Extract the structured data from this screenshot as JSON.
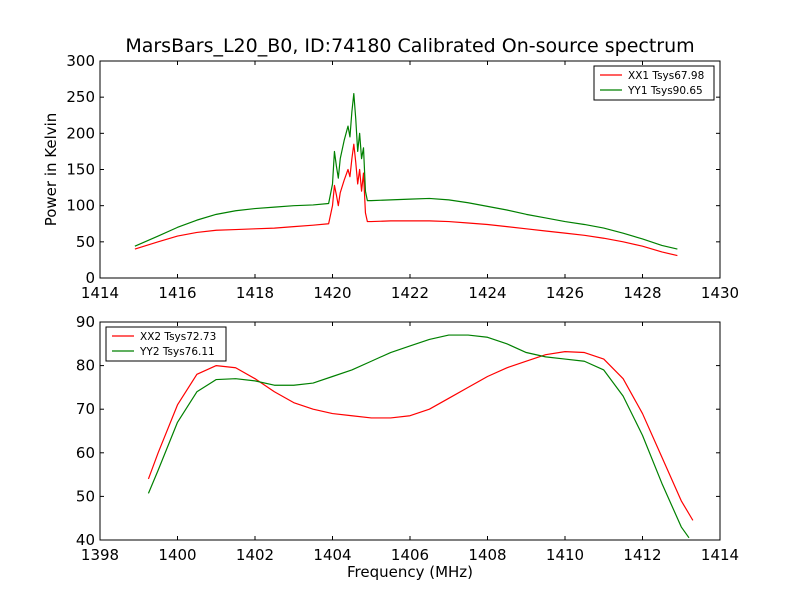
{
  "title": "MarsBars_L20_B0, ID:74180 Calibrated On-source spectrum",
  "chart_data": [
    {
      "type": "line",
      "title": "MarsBars_L20_B0, ID:74180 Calibrated On-source spectrum",
      "xlabel": "",
      "ylabel": "Power in Kelvin",
      "xlim": [
        1414,
        1430
      ],
      "ylim": [
        0,
        300
      ],
      "xticks": [
        1414,
        1416,
        1418,
        1420,
        1422,
        1424,
        1426,
        1428,
        1430
      ],
      "yticks": [
        0,
        50,
        100,
        150,
        200,
        250,
        300
      ],
      "grid": false,
      "legend_position": "top-right",
      "series": [
        {
          "name": "XX1 Tsys67.98",
          "color": "#ff0000",
          "x": [
            1414.9,
            1415.5,
            1416,
            1416.5,
            1417,
            1417.5,
            1418,
            1418.5,
            1419,
            1419.5,
            1419.9,
            1420.0,
            1420.05,
            1420.1,
            1420.15,
            1420.2,
            1420.3,
            1420.4,
            1420.45,
            1420.5,
            1420.55,
            1420.6,
            1420.65,
            1420.7,
            1420.75,
            1420.8,
            1420.85,
            1420.9,
            1421,
            1421.5,
            1422,
            1422.5,
            1423,
            1423.5,
            1424,
            1424.5,
            1425,
            1425.5,
            1426,
            1426.5,
            1427,
            1427.5,
            1428,
            1428.5,
            1428.9
          ],
          "y": [
            40,
            50,
            58,
            63,
            66,
            67,
            68,
            69,
            71,
            73,
            75,
            100,
            128,
            115,
            100,
            118,
            135,
            150,
            140,
            165,
            185,
            160,
            130,
            150,
            120,
            145,
            90,
            78,
            78,
            79,
            79,
            79,
            78,
            76,
            74,
            71,
            68,
            65,
            62,
            59,
            55,
            50,
            44,
            36,
            31
          ]
        },
        {
          "name": "YY1 Tsys90.65",
          "color": "#008000",
          "x": [
            1414.9,
            1415.5,
            1416,
            1416.5,
            1417,
            1417.5,
            1418,
            1418.5,
            1419,
            1419.5,
            1419.9,
            1420.0,
            1420.05,
            1420.1,
            1420.15,
            1420.2,
            1420.3,
            1420.4,
            1420.45,
            1420.5,
            1420.55,
            1420.6,
            1420.65,
            1420.7,
            1420.75,
            1420.8,
            1420.85,
            1420.9,
            1421,
            1421.5,
            1422,
            1422.5,
            1423,
            1423.5,
            1424,
            1424.5,
            1425,
            1425.5,
            1426,
            1426.5,
            1427,
            1427.5,
            1428,
            1428.5,
            1428.9
          ],
          "y": [
            44,
            58,
            70,
            80,
            88,
            93,
            96,
            98,
            100,
            101,
            103,
            130,
            175,
            155,
            138,
            165,
            190,
            210,
            195,
            230,
            255,
            220,
            175,
            200,
            165,
            180,
            120,
            107,
            107,
            108,
            109,
            110,
            108,
            104,
            99,
            94,
            88,
            83,
            78,
            74,
            69,
            62,
            54,
            45,
            40
          ]
        }
      ]
    },
    {
      "type": "line",
      "title": "",
      "xlabel": "Frequency (MHz)",
      "ylabel": "",
      "xlim": [
        1398,
        1414
      ],
      "ylim": [
        40,
        90
      ],
      "xticks": [
        1398,
        1400,
        1402,
        1404,
        1406,
        1408,
        1410,
        1412,
        1414
      ],
      "yticks": [
        40,
        50,
        60,
        70,
        80,
        90
      ],
      "grid": false,
      "legend_position": "top-left",
      "series": [
        {
          "name": "XX2 Tsys72.73",
          "color": "#ff0000",
          "x": [
            1399.25,
            1399.5,
            1400,
            1400.5,
            1401,
            1401.5,
            1402,
            1402.5,
            1403,
            1403.5,
            1404,
            1404.5,
            1405,
            1405.5,
            1406,
            1406.5,
            1407,
            1407.5,
            1408,
            1408.5,
            1409,
            1409.5,
            1410,
            1410.5,
            1411,
            1411.5,
            1412,
            1412.5,
            1413,
            1413.3
          ],
          "y": [
            54,
            60,
            71,
            78,
            80,
            79.5,
            77,
            74,
            71.5,
            70,
            69,
            68.5,
            68,
            68,
            68.5,
            70,
            72.5,
            75,
            77.5,
            79.5,
            81,
            82.5,
            83.2,
            83,
            81.5,
            77,
            69,
            59,
            49,
            44.5
          ]
        },
        {
          "name": "YY2 Tsys76.11",
          "color": "#008000",
          "x": [
            1399.25,
            1399.5,
            1400,
            1400.5,
            1401,
            1401.5,
            1402,
            1402.5,
            1403,
            1403.5,
            1404,
            1404.5,
            1405,
            1405.5,
            1406,
            1406.5,
            1407,
            1407.5,
            1408,
            1408.5,
            1409,
            1409.5,
            1410,
            1410.5,
            1411,
            1411.5,
            1412,
            1412.5,
            1413,
            1413.2
          ],
          "y": [
            50.7,
            56,
            67,
            74,
            76.8,
            77,
            76.5,
            75.5,
            75.5,
            76,
            77.5,
            79,
            81,
            83,
            84.5,
            86,
            87,
            87,
            86.5,
            85,
            83,
            82,
            81.5,
            81,
            79,
            73,
            64,
            53,
            43,
            40.5
          ]
        }
      ]
    }
  ]
}
